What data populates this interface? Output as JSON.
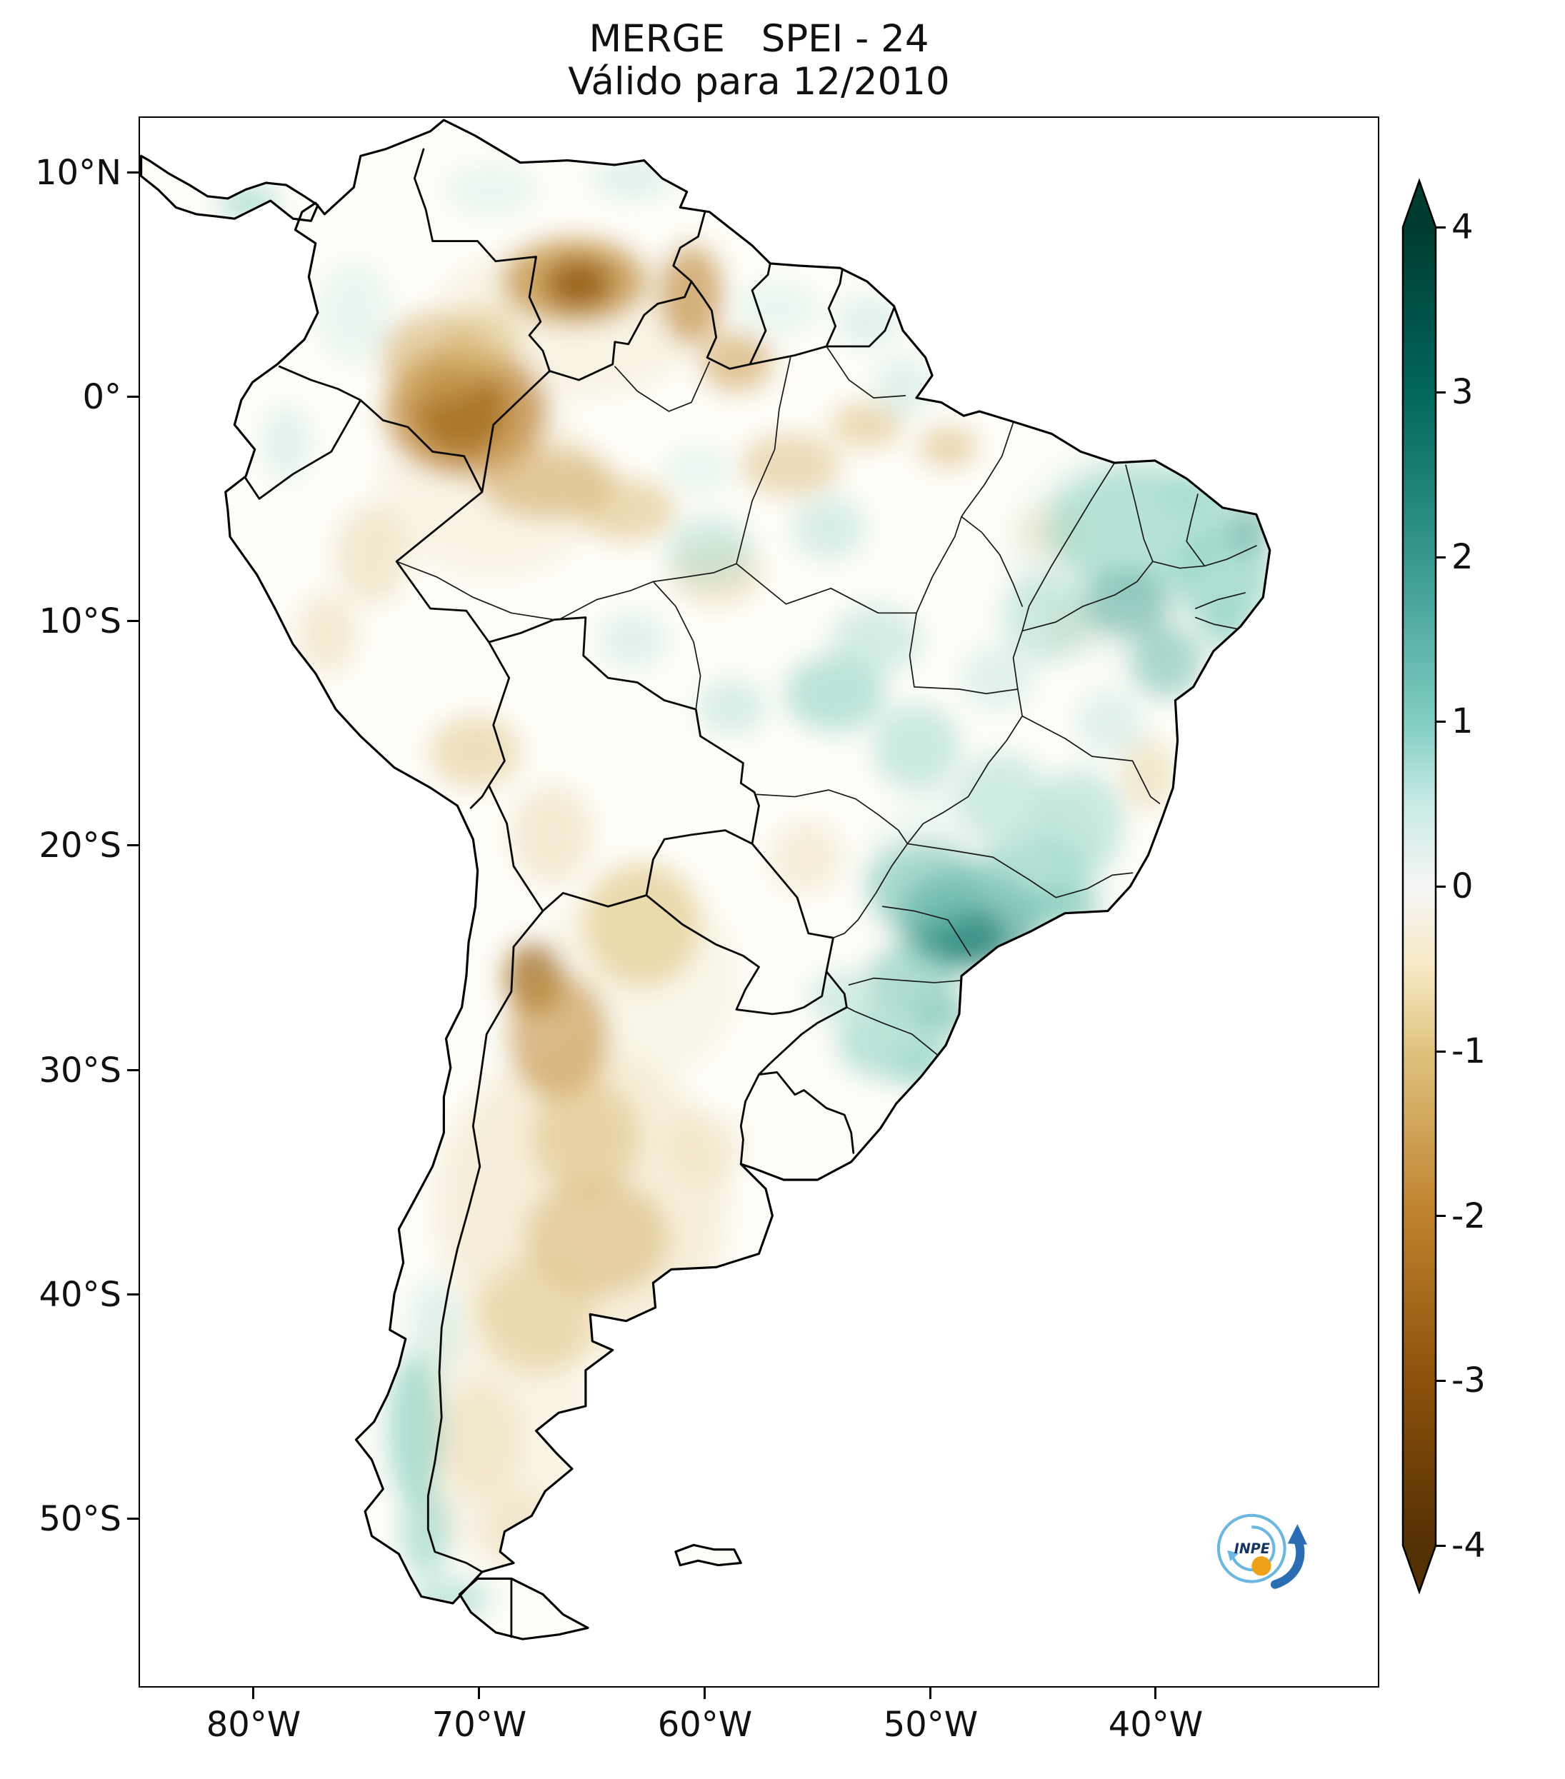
{
  "figure": {
    "title_line1": "MERGE   SPEI - 24",
    "title_line2": "Válido para 12/2010"
  },
  "axes": {
    "y_ticks": [
      "10°N",
      "0°",
      "10°S",
      "20°S",
      "30°S",
      "40°S",
      "50°S"
    ],
    "x_ticks": [
      "80°W",
      "70°W",
      "60°W",
      "50°W",
      "40°W"
    ]
  },
  "colorbar": {
    "tick_labels": [
      "4",
      "3",
      "2",
      "1",
      "0",
      "-1",
      "-2",
      "-3",
      "-4"
    ],
    "range": [
      -4,
      4
    ],
    "colormap": "BrBG",
    "gradient": [
      {
        "v": 4,
        "c": "#003c30"
      },
      {
        "v": 3,
        "c": "#01665e"
      },
      {
        "v": 2,
        "c": "#35978f"
      },
      {
        "v": 1,
        "c": "#80cdc1"
      },
      {
        "v": 0.5,
        "c": "#c7eae5"
      },
      {
        "v": 0,
        "c": "#f5f5f5"
      },
      {
        "v": -0.5,
        "c": "#f6e8c3"
      },
      {
        "v": -1,
        "c": "#dfc27d"
      },
      {
        "v": -2,
        "c": "#bf812d"
      },
      {
        "v": -3,
        "c": "#8c510a"
      },
      {
        "v": -4,
        "c": "#543005"
      }
    ]
  },
  "logo": {
    "label": "INPE"
  },
  "chart_data": {
    "type": "heatmap",
    "product": "MERGE",
    "index": "SPEI-24",
    "valid_for": "12/2010",
    "region": "South America",
    "lon_range": [
      -85.1,
      -30.1
    ],
    "lat_range": [
      -57.5,
      12.5
    ],
    "value_range": [
      -4,
      4
    ],
    "colormap": "BrBG",
    "notable_regions": [
      "Severe drought (SPEI near -3) over NW Amazonas / SE Colombia (~71W, 0.5S)",
      "Drought over southern Venezuela and Guyana border region (SPEI -1.5 to -2.5)",
      "Drought over NW and central Argentina and the Chaco (SPEI -1 to -2.5)",
      "Dry band along the southwestern Amazon (SPEI near -1)",
      "Strong wet anomaly (SPEI near +2.5) over Sao Paulo / SE Brazil",
      "Wet anomalies over Northeast Brazil (SPEI +1 to +2)",
      "Wet strip along southern Chile / Patagonian Andes (SPEI near +1.3)",
      "Near-neutral conditions over most of Peru, Uruguay and central Amazonia"
    ],
    "anomalies": [
      {
        "lon": -65.5,
        "lat": -36.0,
        "rx": 6.5,
        "ry": 7.0,
        "spei": -0.5,
        "color": "#efe2bd",
        "op": 0.5
      },
      {
        "lon": -69.0,
        "lat": -46.0,
        "rx": 4.0,
        "ry": 6.0,
        "spei": -0.4,
        "color": "#f1e7c9",
        "op": 0.45
      },
      {
        "lon": -40.5,
        "lat": -7.0,
        "rx": 6.0,
        "ry": 5.0,
        "spei": 0.4,
        "color": "#e3f2ec",
        "op": 0.55
      },
      {
        "lon": -47.5,
        "lat": -21.5,
        "rx": 5.5,
        "ry": 4.5,
        "spei": 0.4,
        "color": "#e3f2ec",
        "op": 0.55
      },
      {
        "lon": -66.0,
        "lat": 3.5,
        "rx": 6.0,
        "ry": 3.5,
        "spei": -0.4,
        "color": "#f2e7c9",
        "op": 0.45
      },
      {
        "lon": -69.5,
        "lat": -4.0,
        "rx": 5.0,
        "ry": 4.0,
        "spei": -0.4,
        "color": "#f2e7c9",
        "op": 0.4
      },
      {
        "lon": -63.0,
        "lat": -26.0,
        "rx": 4.5,
        "ry": 4.5,
        "spei": -0.3,
        "color": "#f2e7c9",
        "op": 0.35
      },
      {
        "lon": -65.8,
        "lat": 5.2,
        "rx": 3.2,
        "ry": 1.9,
        "spei": -1.6,
        "color": "#c3903f",
        "op": 0.75
      },
      {
        "lon": -65.6,
        "lat": 5.1,
        "rx": 1.5,
        "ry": 1.1,
        "spei": -2.6,
        "color": "#8c510a",
        "op": 0.75
      },
      {
        "lon": -60.6,
        "lat": 4.6,
        "rx": 1.4,
        "ry": 2.2,
        "spei": -1.8,
        "color": "#c08a3e",
        "op": 0.65
      },
      {
        "lon": -58.6,
        "lat": 1.6,
        "rx": 1.6,
        "ry": 1.3,
        "spei": -1.5,
        "color": "#cf9f55",
        "op": 0.6
      },
      {
        "lon": -70.8,
        "lat": -0.5,
        "rx": 2.0,
        "ry": 2.0,
        "spei": -3.2,
        "color": "#774706",
        "op": 0.85
      },
      {
        "lon": -70.6,
        "lat": -0.6,
        "rx": 3.6,
        "ry": 2.9,
        "spei": -2.2,
        "color": "#b97f2a",
        "op": 0.7
      },
      {
        "lon": -72.0,
        "lat": 1.8,
        "rx": 2.4,
        "ry": 2.0,
        "spei": -1.2,
        "color": "#d4ab64",
        "op": 0.55
      },
      {
        "lon": -67.0,
        "lat": -3.8,
        "rx": 3.0,
        "ry": 1.6,
        "spei": -1.3,
        "color": "#cfa55c",
        "op": 0.55
      },
      {
        "lon": -63.5,
        "lat": -5.0,
        "rx": 2.2,
        "ry": 1.4,
        "spei": -1.0,
        "color": "#dcbd7c",
        "op": 0.55
      },
      {
        "lon": -59.5,
        "lat": -7.8,
        "rx": 2.0,
        "ry": 1.4,
        "spei": -0.8,
        "color": "#e3cc96",
        "op": 0.5
      },
      {
        "lon": -56.2,
        "lat": -3.0,
        "rx": 2.2,
        "ry": 1.4,
        "spei": -1.0,
        "color": "#ddc083",
        "op": 0.55
      },
      {
        "lon": -52.8,
        "lat": -1.2,
        "rx": 1.6,
        "ry": 1.0,
        "spei": -1.0,
        "color": "#dcbd7c",
        "op": 0.55
      },
      {
        "lon": -49.2,
        "lat": -2.2,
        "rx": 1.3,
        "ry": 0.9,
        "spei": -1.1,
        "color": "#d8b674",
        "op": 0.55
      },
      {
        "lon": -74.8,
        "lat": -7.0,
        "rx": 1.6,
        "ry": 2.2,
        "spei": -0.6,
        "color": "#e8d5a7",
        "op": 0.5
      },
      {
        "lon": -76.8,
        "lat": -10.5,
        "rx": 1.3,
        "ry": 1.8,
        "spei": -0.6,
        "color": "#e8d5a7",
        "op": 0.45
      },
      {
        "lon": -70.2,
        "lat": -15.8,
        "rx": 2.0,
        "ry": 1.6,
        "spei": -0.9,
        "color": "#e2c78b",
        "op": 0.55
      },
      {
        "lon": -66.8,
        "lat": -19.5,
        "rx": 1.8,
        "ry": 2.2,
        "spei": -0.6,
        "color": "#e8d5a7",
        "op": 0.45
      },
      {
        "lon": -62.8,
        "lat": -23.5,
        "rx": 2.6,
        "ry": 2.8,
        "spei": -1.1,
        "color": "#dfc27d",
        "op": 0.55
      },
      {
        "lon": -67.6,
        "lat": -25.9,
        "rx": 1.3,
        "ry": 1.6,
        "spei": -2.4,
        "color": "#9a6210",
        "op": 0.7
      },
      {
        "lon": -66.5,
        "lat": -28.5,
        "rx": 2.2,
        "ry": 2.8,
        "spei": -1.6,
        "color": "#c3903f",
        "op": 0.6
      },
      {
        "lon": -65.3,
        "lat": -33.0,
        "rx": 2.4,
        "ry": 2.6,
        "spei": -1.1,
        "color": "#dcbd7c",
        "op": 0.55
      },
      {
        "lon": -64.8,
        "lat": -37.5,
        "rx": 3.2,
        "ry": 2.6,
        "spei": -1.2,
        "color": "#d9b572",
        "op": 0.55
      },
      {
        "lon": -67.5,
        "lat": -41.0,
        "rx": 2.6,
        "ry": 2.6,
        "spei": -0.9,
        "color": "#e2c78b",
        "op": 0.5
      },
      {
        "lon": -70.0,
        "lat": -46.5,
        "rx": 1.8,
        "ry": 2.6,
        "spei": -0.5,
        "color": "#ead8ac",
        "op": 0.45
      },
      {
        "lon": -68.3,
        "lat": -50.5,
        "rx": 1.6,
        "ry": 1.8,
        "spei": -0.4,
        "color": "#ead8ac",
        "op": 0.4
      },
      {
        "lon": -44.5,
        "lat": -6.0,
        "rx": 1.6,
        "ry": 1.2,
        "spei": -0.5,
        "color": "#ead8ac",
        "op": 0.45
      },
      {
        "lon": -40.3,
        "lat": -16.8,
        "rx": 1.2,
        "ry": 1.6,
        "spei": -0.7,
        "color": "#e6d1a0",
        "op": 0.5
      },
      {
        "lon": -43.8,
        "lat": -10.2,
        "rx": 1.1,
        "ry": 1.1,
        "spei": -0.5,
        "color": "#ead8ac",
        "op": 0.45
      },
      {
        "lon": -55.5,
        "lat": -20.5,
        "rx": 1.6,
        "ry": 1.6,
        "spei": -0.4,
        "color": "#ead8ac",
        "op": 0.4
      },
      {
        "lon": -60.0,
        "lat": -33.5,
        "rx": 1.8,
        "ry": 1.6,
        "spei": -0.4,
        "color": "#ead8ac",
        "op": 0.35
      },
      {
        "lon": -69.8,
        "lat": 2.5,
        "rx": 1.6,
        "ry": 1.6,
        "spei": -1.0,
        "color": "#dcbd7c",
        "op": 0.5
      },
      {
        "lon": -40.8,
        "lat": -5.8,
        "rx": 4.0,
        "ry": 2.8,
        "spei": 1.1,
        "color": "#9ed8cc",
        "op": 0.7
      },
      {
        "lon": -37.0,
        "lat": -8.0,
        "rx": 2.2,
        "ry": 2.2,
        "spei": 1.2,
        "color": "#8fd2c5",
        "op": 0.65
      },
      {
        "lon": -41.3,
        "lat": -9.2,
        "rx": 2.0,
        "ry": 1.5,
        "spei": 1.8,
        "color": "#56a99c",
        "op": 0.55
      },
      {
        "lon": -35.8,
        "lat": -5.8,
        "rx": 1.0,
        "ry": 1.2,
        "spei": 1.8,
        "color": "#56a99c",
        "op": 0.55
      },
      {
        "lon": -44.8,
        "lat": -9.8,
        "rx": 2.0,
        "ry": 2.0,
        "spei": 0.8,
        "color": "#b0e0d6",
        "op": 0.6
      },
      {
        "lon": -39.5,
        "lat": -11.8,
        "rx": 1.6,
        "ry": 1.6,
        "spei": 1.5,
        "color": "#6cbcae",
        "op": 0.55
      },
      {
        "lon": -38.0,
        "lat": -4.2,
        "rx": 1.8,
        "ry": 1.0,
        "spei": 1.1,
        "color": "#9ed8cc",
        "op": 0.6
      },
      {
        "lon": -48.6,
        "lat": -24.0,
        "rx": 1.9,
        "ry": 1.3,
        "spei": 2.7,
        "color": "#0b6b60",
        "op": 0.8
      },
      {
        "lon": -48.3,
        "lat": -23.3,
        "rx": 3.2,
        "ry": 2.3,
        "spei": 2.0,
        "color": "#3d9a8d",
        "op": 0.65
      },
      {
        "lon": -50.2,
        "lat": -21.8,
        "rx": 2.6,
        "ry": 2.0,
        "spei": 1.4,
        "color": "#79c6b8",
        "op": 0.6
      },
      {
        "lon": -45.5,
        "lat": -21.5,
        "rx": 2.6,
        "ry": 2.0,
        "spei": 1.2,
        "color": "#8fd2c5",
        "op": 0.6
      },
      {
        "lon": -43.4,
        "lat": -19.0,
        "rx": 2.0,
        "ry": 2.4,
        "spei": 1.1,
        "color": "#9ed8cc",
        "op": 0.55
      },
      {
        "lon": -46.8,
        "lat": -17.8,
        "rx": 2.0,
        "ry": 2.0,
        "spei": 0.8,
        "color": "#b0e0d6",
        "op": 0.55
      },
      {
        "lon": -50.8,
        "lat": -26.0,
        "rx": 2.0,
        "ry": 1.6,
        "spei": 1.4,
        "color": "#79c6b8",
        "op": 0.6
      },
      {
        "lon": -51.8,
        "lat": -28.8,
        "rx": 2.3,
        "ry": 1.6,
        "spei": 1.2,
        "color": "#8fd2c5",
        "op": 0.6
      },
      {
        "lon": -53.8,
        "lat": -26.8,
        "rx": 1.6,
        "ry": 1.2,
        "spei": 0.8,
        "color": "#b0e0d6",
        "op": 0.55
      },
      {
        "lon": -50.2,
        "lat": -29.9,
        "rx": 1.5,
        "ry": 1.0,
        "spei": 1.1,
        "color": "#8fd2c5",
        "op": 0.55
      },
      {
        "lon": -54.2,
        "lat": -13.2,
        "rx": 2.2,
        "ry": 1.7,
        "spei": 1.2,
        "color": "#8fd2c5",
        "op": 0.6
      },
      {
        "lon": -52.4,
        "lat": -10.8,
        "rx": 2.0,
        "ry": 1.5,
        "spei": 0.8,
        "color": "#b0e0d6",
        "op": 0.55
      },
      {
        "lon": -50.6,
        "lat": -15.6,
        "rx": 1.9,
        "ry": 1.9,
        "spei": 1.0,
        "color": "#9ed8cc",
        "op": 0.55
      },
      {
        "lon": -58.8,
        "lat": -13.8,
        "rx": 1.5,
        "ry": 1.2,
        "spei": 0.7,
        "color": "#b0e0d6",
        "op": 0.5
      },
      {
        "lon": -59.8,
        "lat": -6.8,
        "rx": 1.9,
        "ry": 1.5,
        "spei": 0.8,
        "color": "#b0e0d6",
        "op": 0.55
      },
      {
        "lon": -54.5,
        "lat": -5.8,
        "rx": 1.6,
        "ry": 1.4,
        "spei": 0.7,
        "color": "#b0e0d6",
        "op": 0.5
      },
      {
        "lon": -63.2,
        "lat": -10.8,
        "rx": 1.5,
        "ry": 1.2,
        "spei": 0.6,
        "color": "#c3e8df",
        "op": 0.5
      },
      {
        "lon": -72.9,
        "lat": -46.0,
        "rx": 1.2,
        "ry": 3.4,
        "spei": 1.3,
        "color": "#85cfc2",
        "op": 0.65
      },
      {
        "lon": -72.4,
        "lat": -50.6,
        "rx": 1.1,
        "ry": 2.0,
        "spei": 1.2,
        "color": "#8fd2c5",
        "op": 0.6
      },
      {
        "lon": -72.0,
        "lat": -41.5,
        "rx": 1.1,
        "ry": 2.2,
        "spei": 0.6,
        "color": "#c3e8df",
        "op": 0.5
      },
      {
        "lon": -71.3,
        "lat": -53.6,
        "rx": 1.8,
        "ry": 0.9,
        "spei": 1.0,
        "color": "#9ed8cc",
        "op": 0.6
      },
      {
        "lon": -80.3,
        "lat": 8.7,
        "rx": 1.3,
        "ry": 0.7,
        "spei": 1.2,
        "color": "#8fd2c5",
        "op": 0.65
      },
      {
        "lon": -63.2,
        "lat": 9.8,
        "rx": 1.8,
        "ry": 0.9,
        "spei": 0.5,
        "color": "#c3e8df",
        "op": 0.5
      },
      {
        "lon": -69.5,
        "lat": 9.3,
        "rx": 2.0,
        "ry": 1.1,
        "spei": 0.4,
        "color": "#d4efe8",
        "op": 0.5
      },
      {
        "lon": -75.6,
        "lat": 3.8,
        "rx": 1.6,
        "ry": 2.2,
        "spei": 0.4,
        "color": "#d4efe8",
        "op": 0.5
      },
      {
        "lon": -78.6,
        "lat": -2.0,
        "rx": 1.0,
        "ry": 1.6,
        "spei": 0.5,
        "color": "#c3e8df",
        "op": 0.5
      },
      {
        "lon": -44.2,
        "lat": -22.7,
        "rx": 1.8,
        "ry": 0.9,
        "spei": 1.4,
        "color": "#79c6b8",
        "op": 0.6
      },
      {
        "lon": -42.0,
        "lat": -14.5,
        "rx": 1.5,
        "ry": 1.5,
        "spei": 0.6,
        "color": "#c3e8df",
        "op": 0.5
      },
      {
        "lon": -36.8,
        "lat": -10.2,
        "rx": 1.1,
        "ry": 1.1,
        "spei": 1.2,
        "color": "#8fd2c5",
        "op": 0.6
      },
      {
        "lon": -56.8,
        "lat": 4.0,
        "rx": 1.8,
        "ry": 1.2,
        "spei": 0.4,
        "color": "#d4efe8",
        "op": 0.5
      },
      {
        "lon": -52.8,
        "lat": 3.4,
        "rx": 1.4,
        "ry": 1.1,
        "spei": 0.5,
        "color": "#c3e8df",
        "op": 0.5
      },
      {
        "lon": -51.2,
        "lat": 0.5,
        "rx": 1.3,
        "ry": 1.3,
        "spei": 0.5,
        "color": "#c3e8df",
        "op": 0.5
      },
      {
        "lon": -49.3,
        "lat": -27.6,
        "rx": 1.2,
        "ry": 0.9,
        "spei": 1.5,
        "color": "#6cbcae",
        "op": 0.6
      },
      {
        "lon": -60.3,
        "lat": -3.2,
        "rx": 1.5,
        "ry": 1.0,
        "spei": 0.4,
        "color": "#d4efe8",
        "op": 0.5
      },
      {
        "lon": -47.0,
        "lat": -12.5,
        "rx": 1.6,
        "ry": 1.4,
        "spei": 0.7,
        "color": "#c3e8df",
        "op": 0.5
      }
    ]
  }
}
